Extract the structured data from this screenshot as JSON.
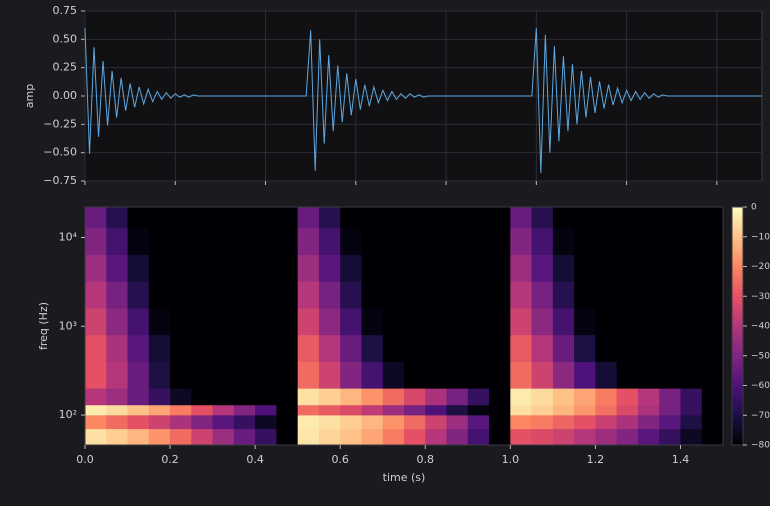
{
  "chart_data": [
    {
      "type": "line",
      "ylabel": "amp",
      "color": "#5fa8e0",
      "grid": true,
      "xlim": [
        0,
        1.5
      ],
      "ylim": [
        -0.75,
        0.75
      ],
      "xticks": [
        0,
        0.2,
        0.4,
        0.6,
        0.8,
        1.0,
        1.2,
        1.4
      ],
      "yticks": [
        {
          "value": 0.75,
          "label": "0.75"
        },
        {
          "value": 0.5,
          "label": "0.50"
        },
        {
          "value": 0.25,
          "label": "0.25"
        },
        {
          "value": 0,
          "label": "0.00"
        },
        {
          "value": -0.25,
          "label": "−0.25"
        },
        {
          "value": -0.5,
          "label": "−0.50"
        },
        {
          "value": -0.75,
          "label": "−0.75"
        }
      ],
      "x": [
        0,
        0.01,
        0.02,
        0.03,
        0.04,
        0.05,
        0.06,
        0.07,
        0.08,
        0.09,
        0.1,
        0.11,
        0.12,
        0.13,
        0.14,
        0.15,
        0.16,
        0.17,
        0.18,
        0.19,
        0.2,
        0.21,
        0.22,
        0.23,
        0.24,
        0.25,
        0.26,
        0.27,
        0.28,
        0.29,
        0.3,
        0.31,
        0.32,
        0.33,
        0.34,
        0.35,
        0.36,
        0.37,
        0.38,
        0.39,
        0.4,
        0.41,
        0.42,
        0.43,
        0.44,
        0.45,
        0.46,
        0.47,
        0.48,
        0.49,
        0.5,
        0.51,
        0.52,
        0.53,
        0.54,
        0.55,
        0.56,
        0.57,
        0.58,
        0.59,
        0.6,
        0.61,
        0.62,
        0.63,
        0.64,
        0.65,
        0.66,
        0.67,
        0.68,
        0.69,
        0.7,
        0.71,
        0.72,
        0.73,
        0.74,
        0.75,
        0.76,
        0.77,
        0.78,
        0.79,
        0.8,
        0.81,
        0.82,
        0.83,
        0.84,
        0.85,
        0.86,
        0.87,
        0.88,
        0.89,
        0.9,
        0.91,
        0.92,
        0.93,
        0.94,
        0.95,
        0.96,
        0.97,
        0.98,
        0.99,
        1.0,
        1.01,
        1.02,
        1.03,
        1.04,
        1.05,
        1.06,
        1.07,
        1.08,
        1.09,
        1.1,
        1.11,
        1.12,
        1.13,
        1.14,
        1.15,
        1.16,
        1.17,
        1.18,
        1.19,
        1.2,
        1.21,
        1.22,
        1.23,
        1.24,
        1.25,
        1.26,
        1.27,
        1.28,
        1.29,
        1.3,
        1.31,
        1.32,
        1.33,
        1.34,
        1.35,
        1.36,
        1.37,
        1.38,
        1.39,
        1.4,
        1.41,
        1.42,
        1.43,
        1.44,
        1.45,
        1.46,
        1.47,
        1.48,
        1.49,
        1.5
      ],
      "values": [
        0.6,
        -0.51,
        0.43,
        -0.36,
        0.31,
        -0.26,
        0.22,
        -0.19,
        0.16,
        -0.13,
        0.11,
        -0.1,
        0.08,
        -0.07,
        0.06,
        -0.05,
        0.04,
        -0.03,
        0.03,
        -0.02,
        0.02,
        -0.01,
        0.01,
        -0.01,
        0.01,
        0,
        0,
        0,
        0,
        0,
        0,
        0,
        0,
        0,
        0,
        0,
        0,
        0,
        0,
        0,
        0,
        0,
        0,
        0,
        0,
        0,
        0,
        0,
        0,
        0,
        0.58,
        -0.66,
        0.5,
        -0.42,
        0.36,
        -0.31,
        0.27,
        -0.23,
        0.2,
        -0.17,
        0.15,
        -0.12,
        0.1,
        -0.09,
        0.08,
        -0.06,
        0.05,
        -0.04,
        0.04,
        -0.03,
        0.02,
        -0.02,
        0.02,
        -0.01,
        0.01,
        -0.01,
        0,
        0,
        0,
        0,
        0,
        0,
        0,
        0,
        0,
        0,
        0,
        0,
        0,
        0,
        0,
        0,
        0,
        0,
        0,
        0,
        0,
        0,
        0,
        0,
        0.6,
        -0.68,
        0.54,
        -0.5,
        0.44,
        -0.4,
        0.35,
        -0.31,
        0.28,
        -0.25,
        0.22,
        -0.19,
        0.17,
        -0.15,
        0.13,
        -0.11,
        0.1,
        -0.08,
        0.07,
        -0.06,
        0.05,
        -0.04,
        0.04,
        -0.03,
        0.03,
        -0.02,
        0.02,
        -0.01,
        0.01,
        0,
        0,
        0,
        0,
        0,
        0,
        0,
        0,
        0,
        0,
        0,
        0,
        0,
        0,
        0,
        0,
        0,
        0,
        0,
        0,
        0,
        0
      ]
    },
    {
      "type": "heatmap",
      "xlabel": "time (s)",
      "ylabel": "freq (Hz)",
      "log_y": true,
      "colormap": "magma",
      "xlim": [
        0,
        1.5
      ],
      "ylim": [
        46,
        22050
      ],
      "clim": [
        -80,
        0
      ],
      "xticks": [
        {
          "value": 0,
          "label": "0.0"
        },
        {
          "value": 0.2,
          "label": "0.2"
        },
        {
          "value": 0.4,
          "label": "0.4"
        },
        {
          "value": 0.6,
          "label": "0.6"
        },
        {
          "value": 0.8,
          "label": "0.8"
        },
        {
          "value": 1.0,
          "label": "1.0"
        },
        {
          "value": 1.2,
          "label": "1.2"
        },
        {
          "value": 1.4,
          "label": "1.4"
        }
      ],
      "yticks": [
        {
          "value": 100,
          "label": "10²"
        },
        {
          "value": 1000,
          "label": "10³"
        },
        {
          "value": 10000,
          "label": "10⁴"
        }
      ],
      "cticks": [
        0,
        {
          "value": -10,
          "label": "−10"
        },
        {
          "value": -20,
          "label": "−20"
        },
        {
          "value": -30,
          "label": "−30"
        },
        {
          "value": -40,
          "label": "−40"
        },
        {
          "value": -50,
          "label": "−50"
        },
        {
          "value": -60,
          "label": "−60"
        },
        {
          "value": -70,
          "label": "−70"
        },
        {
          "value": -80,
          "label": "−80"
        }
      ],
      "time_bins": [
        0,
        0.05,
        0.1,
        0.15,
        0.2,
        0.25,
        0.3,
        0.35,
        0.4,
        0.45,
        0.5,
        0.55,
        0.6,
        0.65,
        0.7,
        0.75,
        0.8,
        0.85,
        0.9,
        0.95,
        1.0,
        1.05,
        1.1,
        1.15,
        1.2,
        1.25,
        1.3,
        1.35,
        1.4,
        1.45,
        1.5
      ],
      "freq_bins": [
        46,
        70,
        100,
        130,
        200,
        400,
        800,
        1600,
        3200,
        6400,
        12800,
        22050
      ],
      "z": [
        [
          -5,
          -8,
          -12,
          -18,
          -25,
          -35,
          -45,
          -55,
          -65,
          -80,
          -4,
          -7,
          -10,
          -15,
          -22,
          -30,
          -40,
          -50,
          -62,
          -80,
          -30,
          -32,
          -35,
          -40,
          -45,
          -50,
          -58,
          -65,
          -75,
          -80
        ],
        [
          -20,
          -25,
          -30,
          -35,
          -42,
          -50,
          -58,
          -65,
          -75,
          -80,
          -3,
          -5,
          -8,
          -12,
          -18,
          -25,
          -35,
          -45,
          -58,
          -80,
          -20,
          -22,
          -26,
          -30,
          -36,
          -42,
          -50,
          -58,
          -70,
          -80
        ],
        [
          -3,
          -6,
          -10,
          -15,
          -22,
          -30,
          -40,
          -50,
          -60,
          -80,
          -25,
          -28,
          -32,
          -38,
          -45,
          -52,
          -60,
          -70,
          -78,
          -80,
          -5,
          -8,
          -12,
          -17,
          -24,
          -32,
          -42,
          -52,
          -65,
          -80
        ],
        [
          -40,
          -45,
          -55,
          -65,
          -75,
          -80,
          -80,
          -80,
          -80,
          -80,
          -5,
          -8,
          -12,
          -18,
          -25,
          -33,
          -42,
          -52,
          -65,
          -80,
          -3,
          -6,
          -10,
          -15,
          -22,
          -30,
          -40,
          -52,
          -65,
          -80
        ],
        [
          -30,
          -40,
          -55,
          -70,
          -80,
          -80,
          -80,
          -80,
          -80,
          -80,
          -25,
          -35,
          -50,
          -62,
          -75,
          -80,
          -80,
          -80,
          -80,
          -80,
          -25,
          -35,
          -48,
          -60,
          -72,
          -80,
          -80,
          -80,
          -80,
          -80
        ],
        [
          -30,
          -42,
          -58,
          -72,
          -80,
          -80,
          -80,
          -80,
          -80,
          -80,
          -28,
          -40,
          -55,
          -70,
          -80,
          -80,
          -80,
          -80,
          -80,
          -80,
          -28,
          -40,
          -55,
          -70,
          -80,
          -80,
          -80,
          -80,
          -80,
          -80
        ],
        [
          -35,
          -48,
          -62,
          -78,
          -80,
          -80,
          -80,
          -80,
          -80,
          -80,
          -35,
          -48,
          -62,
          -78,
          -80,
          -80,
          -80,
          -80,
          -80,
          -80,
          -35,
          -48,
          -62,
          -78,
          -80,
          -80,
          -80,
          -80,
          -80,
          -80
        ],
        [
          -40,
          -52,
          -68,
          -80,
          -80,
          -80,
          -80,
          -80,
          -80,
          -80,
          -40,
          -52,
          -68,
          -80,
          -80,
          -80,
          -80,
          -80,
          -80,
          -80,
          -40,
          -52,
          -68,
          -80,
          -80,
          -80,
          -80,
          -80,
          -80,
          -80
        ],
        [
          -45,
          -58,
          -72,
          -80,
          -80,
          -80,
          -80,
          -80,
          -80,
          -80,
          -45,
          -58,
          -72,
          -80,
          -80,
          -80,
          -80,
          -80,
          -80,
          -80,
          -45,
          -58,
          -72,
          -80,
          -80,
          -80,
          -80,
          -80,
          -80,
          -80
        ],
        [
          -50,
          -62,
          -78,
          -80,
          -80,
          -80,
          -80,
          -80,
          -80,
          -80,
          -50,
          -62,
          -78,
          -80,
          -80,
          -80,
          -80,
          -80,
          -80,
          -80,
          -50,
          -62,
          -78,
          -80,
          -80,
          -80,
          -80,
          -80,
          -80,
          -80
        ],
        [
          -55,
          -68,
          -80,
          -80,
          -80,
          -80,
          -80,
          -80,
          -80,
          -80,
          -55,
          -68,
          -80,
          -80,
          -80,
          -80,
          -80,
          -80,
          -80,
          -80,
          -55,
          -68,
          -80,
          -80,
          -80,
          -80,
          -80,
          -80,
          -80,
          -80
        ]
      ]
    }
  ]
}
